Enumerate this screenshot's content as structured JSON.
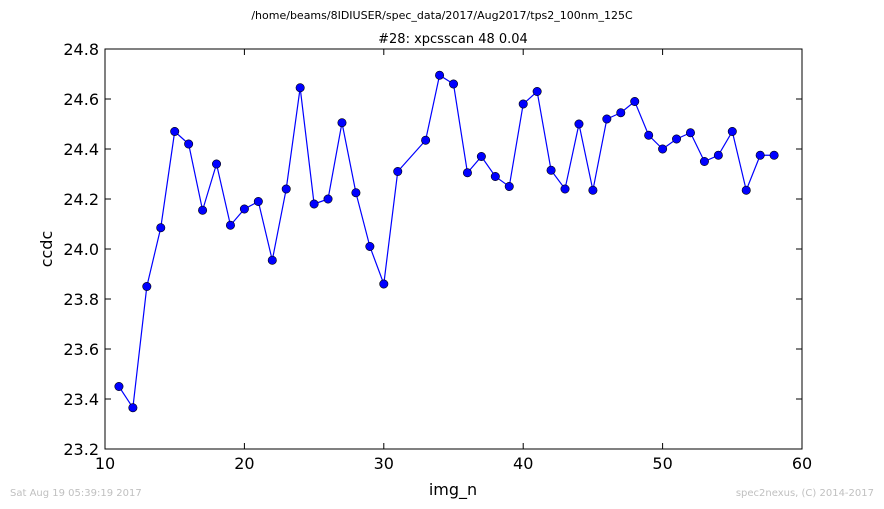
{
  "suptitle": "/home/beams/8IDIUSER/spec_data/2017/Aug2017/tps2_100nm_125C",
  "footer": {
    "timestamp": "Sat Aug 19 05:39:19 2017",
    "credit": "spec2nexus, (C) 2014-2017"
  },
  "chart_data": {
    "type": "line",
    "title": "#28: xpcsscan 48 0.04",
    "xlabel": "img_n",
    "ylabel": "ccdc",
    "xlim": [
      10,
      60
    ],
    "ylim": [
      23.2,
      24.8
    ],
    "xticks": [
      "10",
      "20",
      "30",
      "40",
      "50",
      "60"
    ],
    "yticks": [
      "23.2",
      "23.4",
      "23.6",
      "23.8",
      "24.0",
      "24.2",
      "24.4",
      "24.6",
      "24.8"
    ],
    "grid": false,
    "line_color": "#0000ff",
    "marker_color": "#0000ff",
    "series": [
      {
        "x": [
          11,
          12,
          13,
          14,
          15,
          16,
          17,
          18,
          19,
          20,
          21,
          22,
          23,
          24,
          25,
          26,
          27,
          28,
          29,
          30,
          31,
          33,
          34,
          35,
          36,
          37,
          38,
          39,
          40,
          41,
          42,
          43,
          44,
          45,
          46,
          47,
          48,
          49,
          50,
          51,
          52,
          53,
          54,
          55,
          56,
          57,
          58
        ],
        "values": [
          23.45,
          23.365,
          23.85,
          24.085,
          24.47,
          24.42,
          24.155,
          24.34,
          24.095,
          24.16,
          24.19,
          23.955,
          24.24,
          24.645,
          24.18,
          24.2,
          24.505,
          24.225,
          24.01,
          23.86,
          24.31,
          24.435,
          24.695,
          24.66,
          24.305,
          24.37,
          24.29,
          24.25,
          24.58,
          24.63,
          24.315,
          24.24,
          24.5,
          24.235,
          24.52,
          24.545,
          24.59,
          24.455,
          24.4,
          24.44,
          24.465,
          24.35,
          24.375,
          24.47,
          24.235,
          24.375,
          24.375
        ]
      }
    ]
  }
}
